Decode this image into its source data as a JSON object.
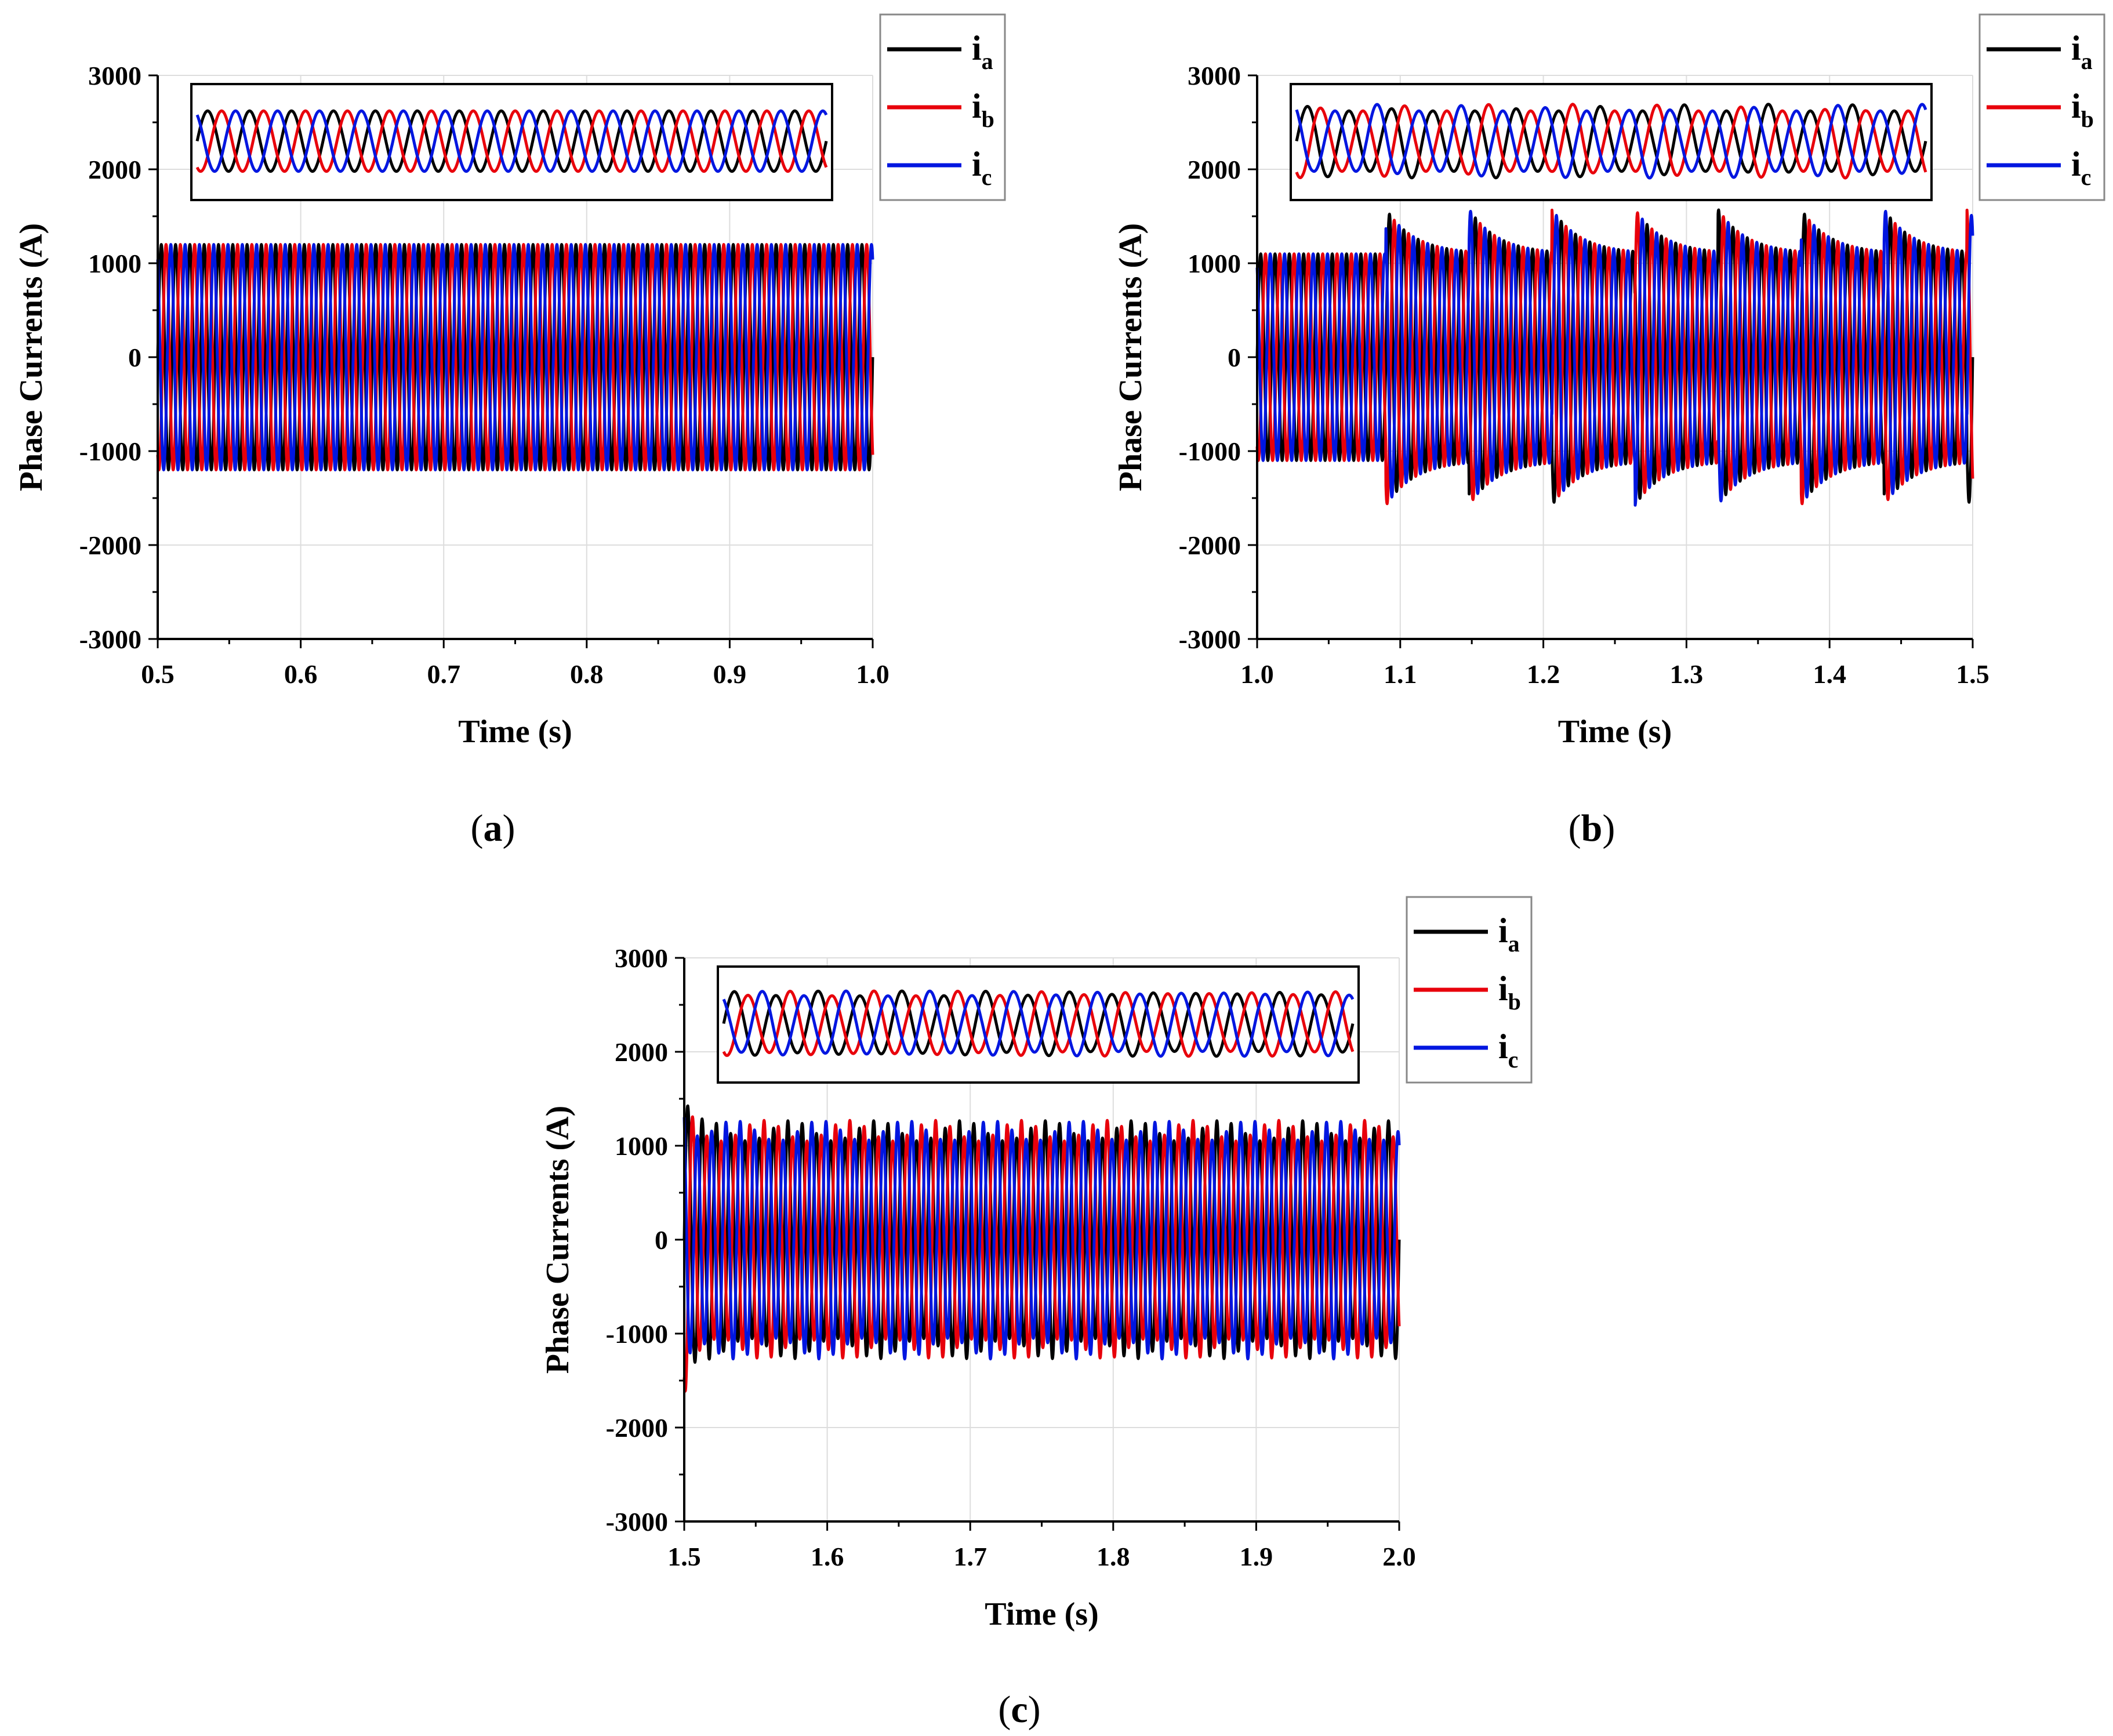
{
  "chart_data": [
    {
      "id": "a",
      "panel_label": "a",
      "type": "line",
      "title": "",
      "xlabel": "Time (s)",
      "ylabel": "Phase Currents (A)",
      "xlim": [
        0.5,
        1.0
      ],
      "ylim": [
        -3000,
        3000
      ],
      "xticks": [
        "0.5",
        "0.6",
        "0.7",
        "0.8",
        "0.9",
        "1.0"
      ],
      "yticks": [
        "3000",
        "2000",
        "1000",
        "0",
        "-1000",
        "-2000",
        "-3000"
      ],
      "grid": true,
      "legend_position": "outside top-right",
      "waveform": {
        "frequency_hz": 100,
        "amplitude_a": 1200,
        "phase_shift_deg": 120,
        "envelope": "constant"
      },
      "inset": {
        "description_band_a": [
          1950,
          2650
        ],
        "cycles": 15
      },
      "series": [
        {
          "name": "i",
          "subscript": "a",
          "color": "#000000"
        },
        {
          "name": "i",
          "subscript": "b",
          "color": "#e8000b"
        },
        {
          "name": "i",
          "subscript": "c",
          "color": "#0016e0"
        }
      ]
    },
    {
      "id": "b",
      "panel_label": "b",
      "type": "line",
      "title": "",
      "xlabel": "Time (s)",
      "ylabel": "Phase Currents (A)",
      "xlim": [
        1.0,
        1.5
      ],
      "ylim": [
        -3000,
        3000
      ],
      "xticks": [
        "1.0",
        "1.1",
        "1.2",
        "1.3",
        "1.4",
        "1.5"
      ],
      "yticks": [
        "3000",
        "2000",
        "1000",
        "0",
        "-1000",
        "-2000",
        "-3000"
      ],
      "grid": true,
      "legend_position": "outside top-right",
      "waveform": {
        "frequency_hz": 100,
        "amplitude_a": 1100,
        "phase_shift_deg": 120,
        "envelope": "sawtooth-surge",
        "surge_period_s": 0.058,
        "surge_first_s": 1.09,
        "surge_peak_a": 1580
      },
      "inset": {
        "description_band_a": [
          1950,
          2650
        ],
        "cycles": 15
      },
      "series": [
        {
          "name": "i",
          "subscript": "a",
          "color": "#000000"
        },
        {
          "name": "i",
          "subscript": "b",
          "color": "#e8000b"
        },
        {
          "name": "i",
          "subscript": "c",
          "color": "#0016e0"
        }
      ]
    },
    {
      "id": "c",
      "panel_label": "c",
      "type": "line",
      "title": "",
      "xlabel": "Time (s)",
      "ylabel": "Phase Currents (A)",
      "xlim": [
        1.5,
        2.0
      ],
      "ylim": [
        -3000,
        3000
      ],
      "xticks": [
        "1.5",
        "1.6",
        "1.7",
        "1.8",
        "1.9",
        "2.0"
      ],
      "yticks": [
        "3000",
        "2000",
        "1000",
        "0",
        "-1000",
        "-2000",
        "-3000"
      ],
      "grid": true,
      "legend_position": "outside top-right",
      "waveform": {
        "frequency_hz": 100,
        "amplitude_a": 1160,
        "phase_shift_deg": 120,
        "envelope": "beat",
        "beat_amplitude_a": 110,
        "beat_period_s": 0.06,
        "initial_spike_a": 1600
      },
      "inset": {
        "description_band_a": [
          1950,
          2650
        ],
        "cycles": 15
      },
      "series": [
        {
          "name": "i",
          "subscript": "a",
          "color": "#000000"
        },
        {
          "name": "i",
          "subscript": "b",
          "color": "#e8000b"
        },
        {
          "name": "i",
          "subscript": "c",
          "color": "#0016e0"
        }
      ]
    }
  ]
}
